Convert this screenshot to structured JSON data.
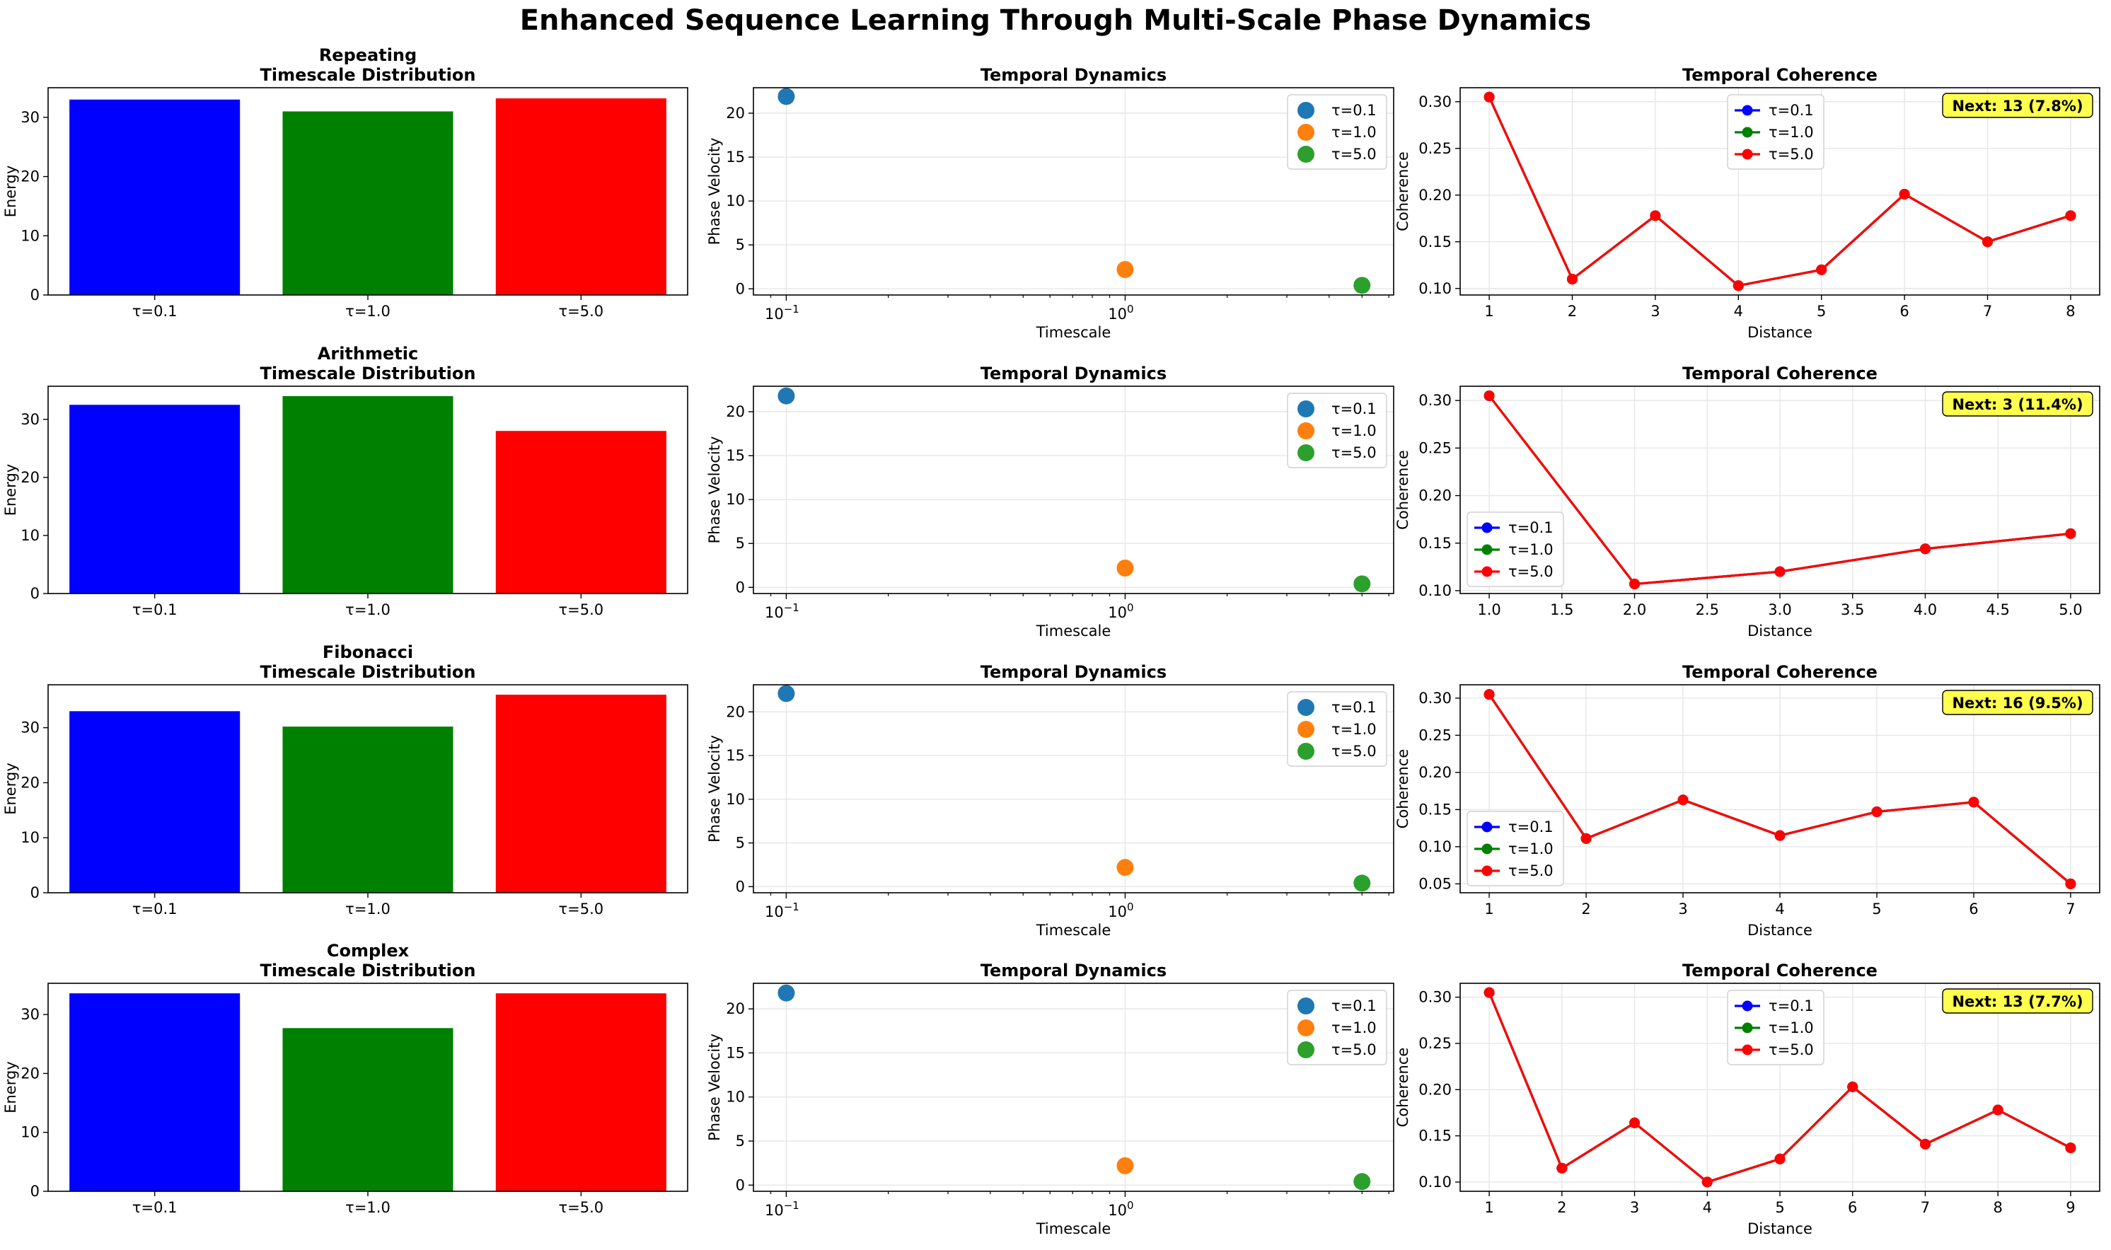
{
  "figure": {
    "title": "Enhanced Sequence Learning Through Multi-Scale Phase Dynamics"
  },
  "chart_data": [
    {
      "type": "bar",
      "row": 0,
      "col": 0,
      "title_lines": [
        "Repeating",
        "Timescale Distribution"
      ],
      "ylabel": "Energy",
      "xlabel": "",
      "categories": [
        "τ=0.1",
        "τ=1.0",
        "τ=5.0"
      ],
      "values": [
        33.0,
        31.0,
        33.2
      ],
      "colors": [
        "#0000ff",
        "#008000",
        "#ff0000"
      ],
      "ylim": [
        0,
        35
      ],
      "yticks": [
        0,
        10,
        20,
        30
      ],
      "grid": false
    },
    {
      "type": "scatter",
      "row": 0,
      "col": 1,
      "title_lines": [
        "Temporal Dynamics"
      ],
      "xlabel": "Timescale",
      "ylabel": "Phase Velocity",
      "xscale": "log",
      "xlim": [
        0.08,
        6.2
      ],
      "ylim": [
        -0.7,
        22.9
      ],
      "xticks": [
        {
          "v": 0.1,
          "label": "10",
          "exp": "−1"
        },
        {
          "v": 1,
          "label": "10",
          "exp": "0"
        }
      ],
      "yticks": [
        0,
        5,
        10,
        15,
        20
      ],
      "series": [
        {
          "name": "τ=0.1",
          "x": 0.1,
          "y": 21.9,
          "color": "#1f77b4"
        },
        {
          "name": "τ=1.0",
          "x": 1.0,
          "y": 2.2,
          "color": "#ff7f0e"
        },
        {
          "name": "τ=5.0",
          "x": 5.0,
          "y": 0.4,
          "color": "#2ca02c"
        }
      ],
      "legend": "upper-right",
      "grid": true
    },
    {
      "type": "line",
      "row": 0,
      "col": 2,
      "title_lines": [
        "Temporal Coherence"
      ],
      "xlabel": "Distance",
      "ylabel": "Coherence",
      "x": [
        1,
        2,
        3,
        4,
        5,
        6,
        7,
        8
      ],
      "series": [
        {
          "name": "τ=0.1",
          "color": "#0000ff",
          "values": [
            0.305,
            0.11,
            0.178,
            0.103,
            0.12,
            0.201,
            0.15,
            0.178
          ]
        },
        {
          "name": "τ=1.0",
          "color": "#008000",
          "values": [
            0.305,
            0.11,
            0.178,
            0.103,
            0.12,
            0.201,
            0.15,
            0.178
          ]
        },
        {
          "name": "τ=5.0",
          "color": "#ff0000",
          "values": [
            0.305,
            0.11,
            0.178,
            0.103,
            0.12,
            0.201,
            0.15,
            0.178
          ]
        }
      ],
      "xlim": [
        0.65,
        8.35
      ],
      "ylim": [
        0.093,
        0.315
      ],
      "xticks": [
        1,
        2,
        3,
        4,
        5,
        6,
        7,
        8
      ],
      "yticks": [
        0.1,
        0.15,
        0.2,
        0.25,
        0.3
      ],
      "ytick_decimals": 2,
      "xtick_decimals": 0,
      "legend": "upper-center",
      "grid": true,
      "annotation": "Next: 13 (7.8%)"
    },
    {
      "type": "bar",
      "row": 1,
      "col": 0,
      "title_lines": [
        "Arithmetic",
        "Timescale Distribution"
      ],
      "ylabel": "Energy",
      "xlabel": "",
      "categories": [
        "τ=0.1",
        "τ=1.0",
        "τ=5.0"
      ],
      "values": [
        32.5,
        34.0,
        28.0
      ],
      "colors": [
        "#0000ff",
        "#008000",
        "#ff0000"
      ],
      "ylim": [
        0,
        35.7
      ],
      "yticks": [
        0,
        10,
        20,
        30
      ],
      "grid": false
    },
    {
      "type": "scatter",
      "row": 1,
      "col": 1,
      "title_lines": [
        "Temporal Dynamics"
      ],
      "xlabel": "Timescale",
      "ylabel": "Phase Velocity",
      "xscale": "log",
      "xlim": [
        0.08,
        6.2
      ],
      "ylim": [
        -0.7,
        22.9
      ],
      "xticks": [
        {
          "v": 0.1,
          "label": "10",
          "exp": "−1"
        },
        {
          "v": 1,
          "label": "10",
          "exp": "0"
        }
      ],
      "yticks": [
        0,
        5,
        10,
        15,
        20
      ],
      "series": [
        {
          "name": "τ=0.1",
          "x": 0.1,
          "y": 21.8,
          "color": "#1f77b4"
        },
        {
          "name": "τ=1.0",
          "x": 1.0,
          "y": 2.2,
          "color": "#ff7f0e"
        },
        {
          "name": "τ=5.0",
          "x": 5.0,
          "y": 0.4,
          "color": "#2ca02c"
        }
      ],
      "legend": "upper-right",
      "grid": true
    },
    {
      "type": "line",
      "row": 1,
      "col": 2,
      "title_lines": [
        "Temporal Coherence"
      ],
      "xlabel": "Distance",
      "ylabel": "Coherence",
      "x": [
        1,
        2,
        3,
        4,
        5
      ],
      "series": [
        {
          "name": "τ=0.1",
          "color": "#0000ff",
          "values": [
            0.305,
            0.107,
            0.12,
            0.144,
            0.16
          ]
        },
        {
          "name": "τ=1.0",
          "color": "#008000",
          "values": [
            0.305,
            0.107,
            0.12,
            0.144,
            0.16
          ]
        },
        {
          "name": "τ=5.0",
          "color": "#ff0000",
          "values": [
            0.305,
            0.107,
            0.12,
            0.144,
            0.16
          ]
        }
      ],
      "xlim": [
        0.8,
        5.2
      ],
      "ylim": [
        0.097,
        0.315
      ],
      "xticks": [
        1.0,
        1.5,
        2.0,
        2.5,
        3.0,
        3.5,
        4.0,
        4.5,
        5.0
      ],
      "yticks": [
        0.1,
        0.15,
        0.2,
        0.25,
        0.3
      ],
      "ytick_decimals": 2,
      "xtick_decimals": 1,
      "legend": "lower-left",
      "grid": true,
      "annotation": "Next: 3 (11.4%)"
    },
    {
      "type": "bar",
      "row": 2,
      "col": 0,
      "title_lines": [
        "Fibonacci",
        "Timescale Distribution"
      ],
      "ylabel": "Energy",
      "xlabel": "",
      "categories": [
        "τ=0.1",
        "τ=1.0",
        "τ=5.0"
      ],
      "values": [
        33.0,
        30.2,
        36.0
      ],
      "colors": [
        "#0000ff",
        "#008000",
        "#ff0000"
      ],
      "ylim": [
        0,
        37.8
      ],
      "yticks": [
        0,
        10,
        20,
        30
      ],
      "grid": false
    },
    {
      "type": "scatter",
      "row": 2,
      "col": 1,
      "title_lines": [
        "Temporal Dynamics"
      ],
      "xlabel": "Timescale",
      "ylabel": "Phase Velocity",
      "xscale": "log",
      "xlim": [
        0.08,
        6.2
      ],
      "ylim": [
        -0.7,
        23.1
      ],
      "xticks": [
        {
          "v": 0.1,
          "label": "10",
          "exp": "−1"
        },
        {
          "v": 1,
          "label": "10",
          "exp": "0"
        }
      ],
      "yticks": [
        0,
        5,
        10,
        15,
        20
      ],
      "series": [
        {
          "name": "τ=0.1",
          "x": 0.1,
          "y": 22.1,
          "color": "#1f77b4"
        },
        {
          "name": "τ=1.0",
          "x": 1.0,
          "y": 2.2,
          "color": "#ff7f0e"
        },
        {
          "name": "τ=5.0",
          "x": 5.0,
          "y": 0.4,
          "color": "#2ca02c"
        }
      ],
      "legend": "upper-right",
      "grid": true
    },
    {
      "type": "line",
      "row": 2,
      "col": 2,
      "title_lines": [
        "Temporal Coherence"
      ],
      "xlabel": "Distance",
      "ylabel": "Coherence",
      "x": [
        1,
        2,
        3,
        4,
        5,
        6,
        7
      ],
      "series": [
        {
          "name": "τ=0.1",
          "color": "#0000ff",
          "values": [
            0.305,
            0.111,
            0.163,
            0.115,
            0.147,
            0.16,
            0.05
          ]
        },
        {
          "name": "τ=1.0",
          "color": "#008000",
          "values": [
            0.305,
            0.111,
            0.163,
            0.115,
            0.147,
            0.16,
            0.05
          ]
        },
        {
          "name": "τ=5.0",
          "color": "#ff0000",
          "values": [
            0.305,
            0.111,
            0.163,
            0.115,
            0.147,
            0.16,
            0.05
          ]
        }
      ],
      "xlim": [
        0.7,
        7.3
      ],
      "ylim": [
        0.038,
        0.318
      ],
      "xticks": [
        1,
        2,
        3,
        4,
        5,
        6,
        7
      ],
      "yticks": [
        0.05,
        0.1,
        0.15,
        0.2,
        0.25,
        0.3
      ],
      "ytick_decimals": 2,
      "xtick_decimals": 0,
      "legend": "lower-left",
      "grid": true,
      "annotation": "Next: 16 (9.5%)"
    },
    {
      "type": "bar",
      "row": 3,
      "col": 0,
      "title_lines": [
        "Complex",
        "Timescale Distribution"
      ],
      "ylabel": "Energy",
      "xlabel": "",
      "categories": [
        "τ=0.1",
        "τ=1.0",
        "τ=5.0"
      ],
      "values": [
        33.6,
        27.7,
        33.6
      ],
      "colors": [
        "#0000ff",
        "#008000",
        "#ff0000"
      ],
      "ylim": [
        0,
        35.3
      ],
      "yticks": [
        0,
        10,
        20,
        30
      ],
      "grid": false
    },
    {
      "type": "scatter",
      "row": 3,
      "col": 1,
      "title_lines": [
        "Temporal Dynamics"
      ],
      "xlabel": "Timescale",
      "ylabel": "Phase Velocity",
      "xscale": "log",
      "xlim": [
        0.08,
        6.2
      ],
      "ylim": [
        -0.7,
        22.9
      ],
      "xticks": [
        {
          "v": 0.1,
          "label": "10",
          "exp": "−1"
        },
        {
          "v": 1,
          "label": "10",
          "exp": "0"
        }
      ],
      "yticks": [
        0,
        5,
        10,
        15,
        20
      ],
      "series": [
        {
          "name": "τ=0.1",
          "x": 0.1,
          "y": 21.8,
          "color": "#1f77b4"
        },
        {
          "name": "τ=1.0",
          "x": 1.0,
          "y": 2.2,
          "color": "#ff7f0e"
        },
        {
          "name": "τ=5.0",
          "x": 5.0,
          "y": 0.4,
          "color": "#2ca02c"
        }
      ],
      "legend": "upper-right",
      "grid": true
    },
    {
      "type": "line",
      "row": 3,
      "col": 2,
      "title_lines": [
        "Temporal Coherence"
      ],
      "xlabel": "Distance",
      "ylabel": "Coherence",
      "x": [
        1,
        2,
        3,
        4,
        5,
        6,
        7,
        8,
        9
      ],
      "series": [
        {
          "name": "τ=0.1",
          "color": "#0000ff",
          "values": [
            0.305,
            0.115,
            0.164,
            0.1,
            0.125,
            0.203,
            0.141,
            0.178,
            0.137
          ]
        },
        {
          "name": "τ=1.0",
          "color": "#008000",
          "values": [
            0.305,
            0.115,
            0.164,
            0.1,
            0.125,
            0.203,
            0.141,
            0.178,
            0.137
          ]
        },
        {
          "name": "τ=5.0",
          "color": "#ff0000",
          "values": [
            0.305,
            0.115,
            0.164,
            0.1,
            0.125,
            0.203,
            0.141,
            0.178,
            0.137
          ]
        }
      ],
      "xlim": [
        0.6,
        9.4
      ],
      "ylim": [
        0.09,
        0.315
      ],
      "xticks": [
        1,
        2,
        3,
        4,
        5,
        6,
        7,
        8,
        9
      ],
      "yticks": [
        0.1,
        0.15,
        0.2,
        0.25,
        0.3
      ],
      "ytick_decimals": 2,
      "xtick_decimals": 0,
      "legend": "upper-center",
      "grid": true,
      "annotation": "Next: 13 (7.7%)"
    }
  ]
}
